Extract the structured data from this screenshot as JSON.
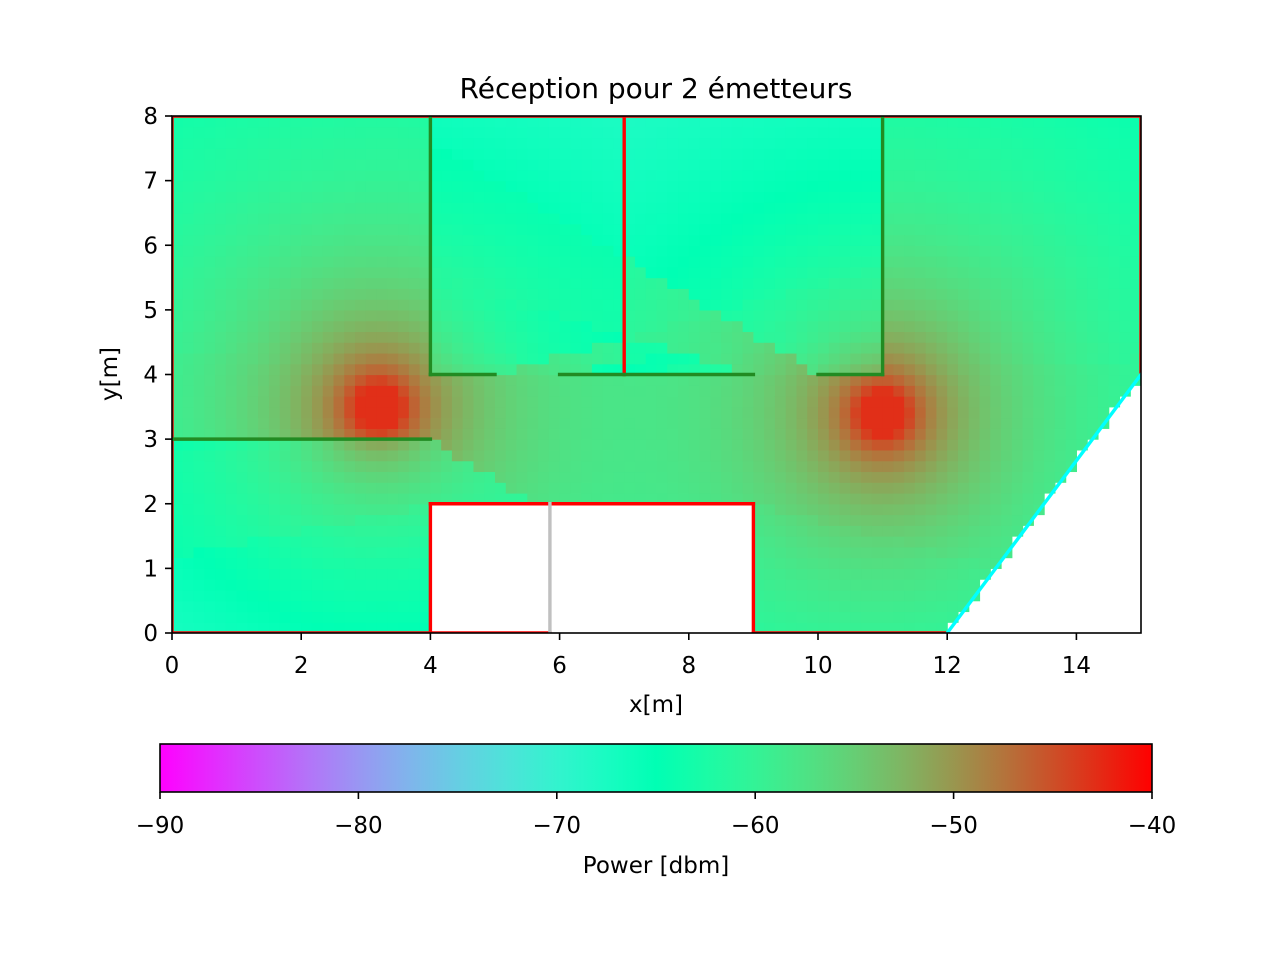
{
  "chart_data": {
    "type": "heatmap",
    "title": "Réception pour 2 émetteurs",
    "xlabel": "x[m]",
    "ylabel": "y[m]",
    "xlim": [
      0,
      15
    ],
    "ylim": [
      0,
      8
    ],
    "xticks": [
      0,
      2,
      4,
      6,
      8,
      10,
      12,
      14
    ],
    "yticks": [
      0,
      1,
      2,
      3,
      4,
      5,
      6,
      7,
      8
    ],
    "colorbar": {
      "label": "Power [dbm]",
      "range": [
        -90,
        -40
      ],
      "ticks": [
        -90,
        -80,
        -70,
        -60,
        -50,
        -40
      ],
      "tick_labels": [
        "−90",
        "−80",
        "−70",
        "−60",
        "−50",
        "−40"
      ],
      "colormap": "rainbow",
      "orientation": "horizontal"
    },
    "transmitters": [
      {
        "x": 3.2,
        "y": 3.5,
        "peak_dbm": -43
      },
      {
        "x": 11.0,
        "y": 3.4,
        "peak_dbm": -43
      }
    ],
    "walls": [
      {
        "x1": 0,
        "y1": 8,
        "x2": 15,
        "y2": 8,
        "color": "#ff0000"
      },
      {
        "x1": 0,
        "y1": 0,
        "x2": 0,
        "y2": 8,
        "color": "#ff0000"
      },
      {
        "x1": 15,
        "y1": 4,
        "x2": 15,
        "y2": 8,
        "color": "#ff0000"
      },
      {
        "x1": 0,
        "y1": 0,
        "x2": 4,
        "y2": 0,
        "color": "#ff0000"
      },
      {
        "x1": 9,
        "y1": 0,
        "x2": 12,
        "y2": 0,
        "color": "#ff0000"
      },
      {
        "x1": 4,
        "y1": 0,
        "x2": 4,
        "y2": 2,
        "color": "#ff0000"
      },
      {
        "x1": 4,
        "y1": 2,
        "x2": 9,
        "y2": 2,
        "color": "#ff0000"
      },
      {
        "x1": 9,
        "y1": 0,
        "x2": 9,
        "y2": 2,
        "color": "#ff0000"
      },
      {
        "x1": 4,
        "y1": 0,
        "x2": 5.85,
        "y2": 0,
        "color": "#ff0000"
      },
      {
        "x1": 7,
        "y1": 4,
        "x2": 7,
        "y2": 8,
        "color": "#ff0000"
      },
      {
        "x1": 5.85,
        "y1": 0,
        "x2": 5.85,
        "y2": 2,
        "color": "#c0c0c0"
      },
      {
        "x1": 0,
        "y1": 3,
        "x2": 4,
        "y2": 3,
        "color": "#228b22"
      },
      {
        "x1": 4,
        "y1": 4,
        "x2": 4,
        "y2": 8,
        "color": "#228b22"
      },
      {
        "x1": 4,
        "y1": 4,
        "x2": 5,
        "y2": 4,
        "color": "#228b22"
      },
      {
        "x1": 6,
        "y1": 4,
        "x2": 9,
        "y2": 4,
        "color": "#228b22"
      },
      {
        "x1": 10,
        "y1": 4,
        "x2": 11,
        "y2": 4,
        "color": "#228b22"
      },
      {
        "x1": 11,
        "y1": 4,
        "x2": 11,
        "y2": 8,
        "color": "#228b22"
      },
      {
        "x1": 12,
        "y1": 0,
        "x2": 15,
        "y2": 4,
        "color": "#00ffff"
      }
    ],
    "excluded_regions": [
      {
        "polygon": [
          [
            4,
            0
          ],
          [
            9,
            0
          ],
          [
            9,
            2
          ],
          [
            4,
            2
          ]
        ]
      },
      {
        "polygon": [
          [
            12,
            0
          ],
          [
            15,
            0
          ],
          [
            15,
            4
          ]
        ]
      }
    ]
  }
}
